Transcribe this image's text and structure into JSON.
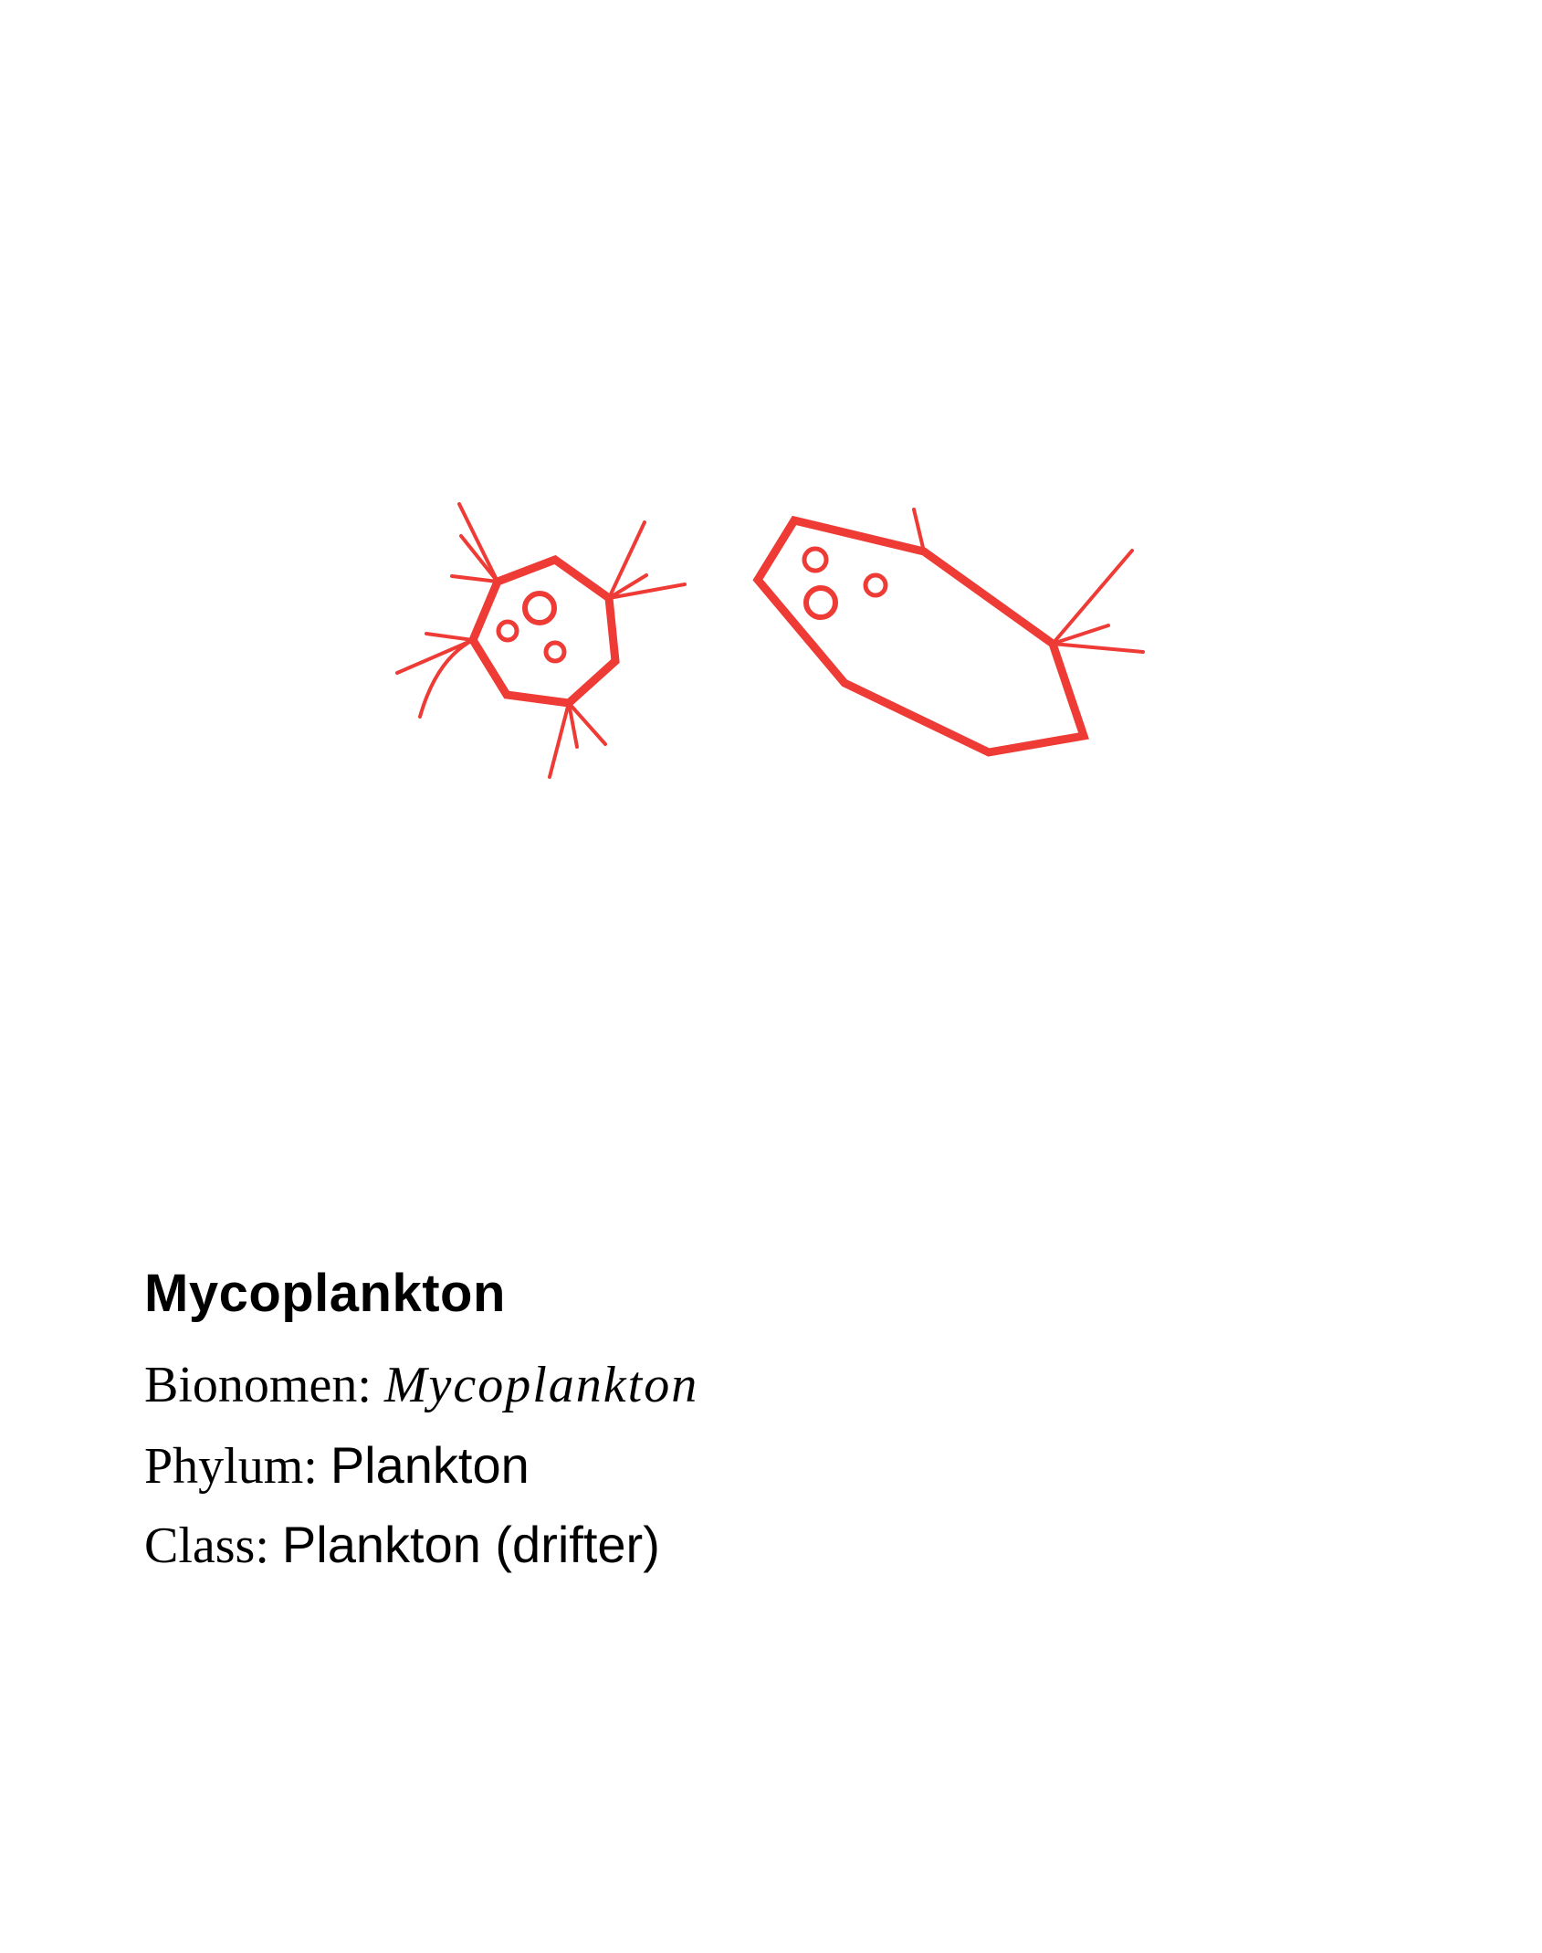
{
  "illustration": {
    "icon": "plankton-illustration-icon",
    "stroke_color": "#ee3b35"
  },
  "entry": {
    "title": "Mycoplankton",
    "bionomen_label": "Bionomen:",
    "bionomen_value": "Mycoplankton",
    "phylum_label": "Phylum:",
    "phylum_value": "Plankton",
    "class_label": "Class:",
    "class_value": "Plankton (drifter)"
  }
}
